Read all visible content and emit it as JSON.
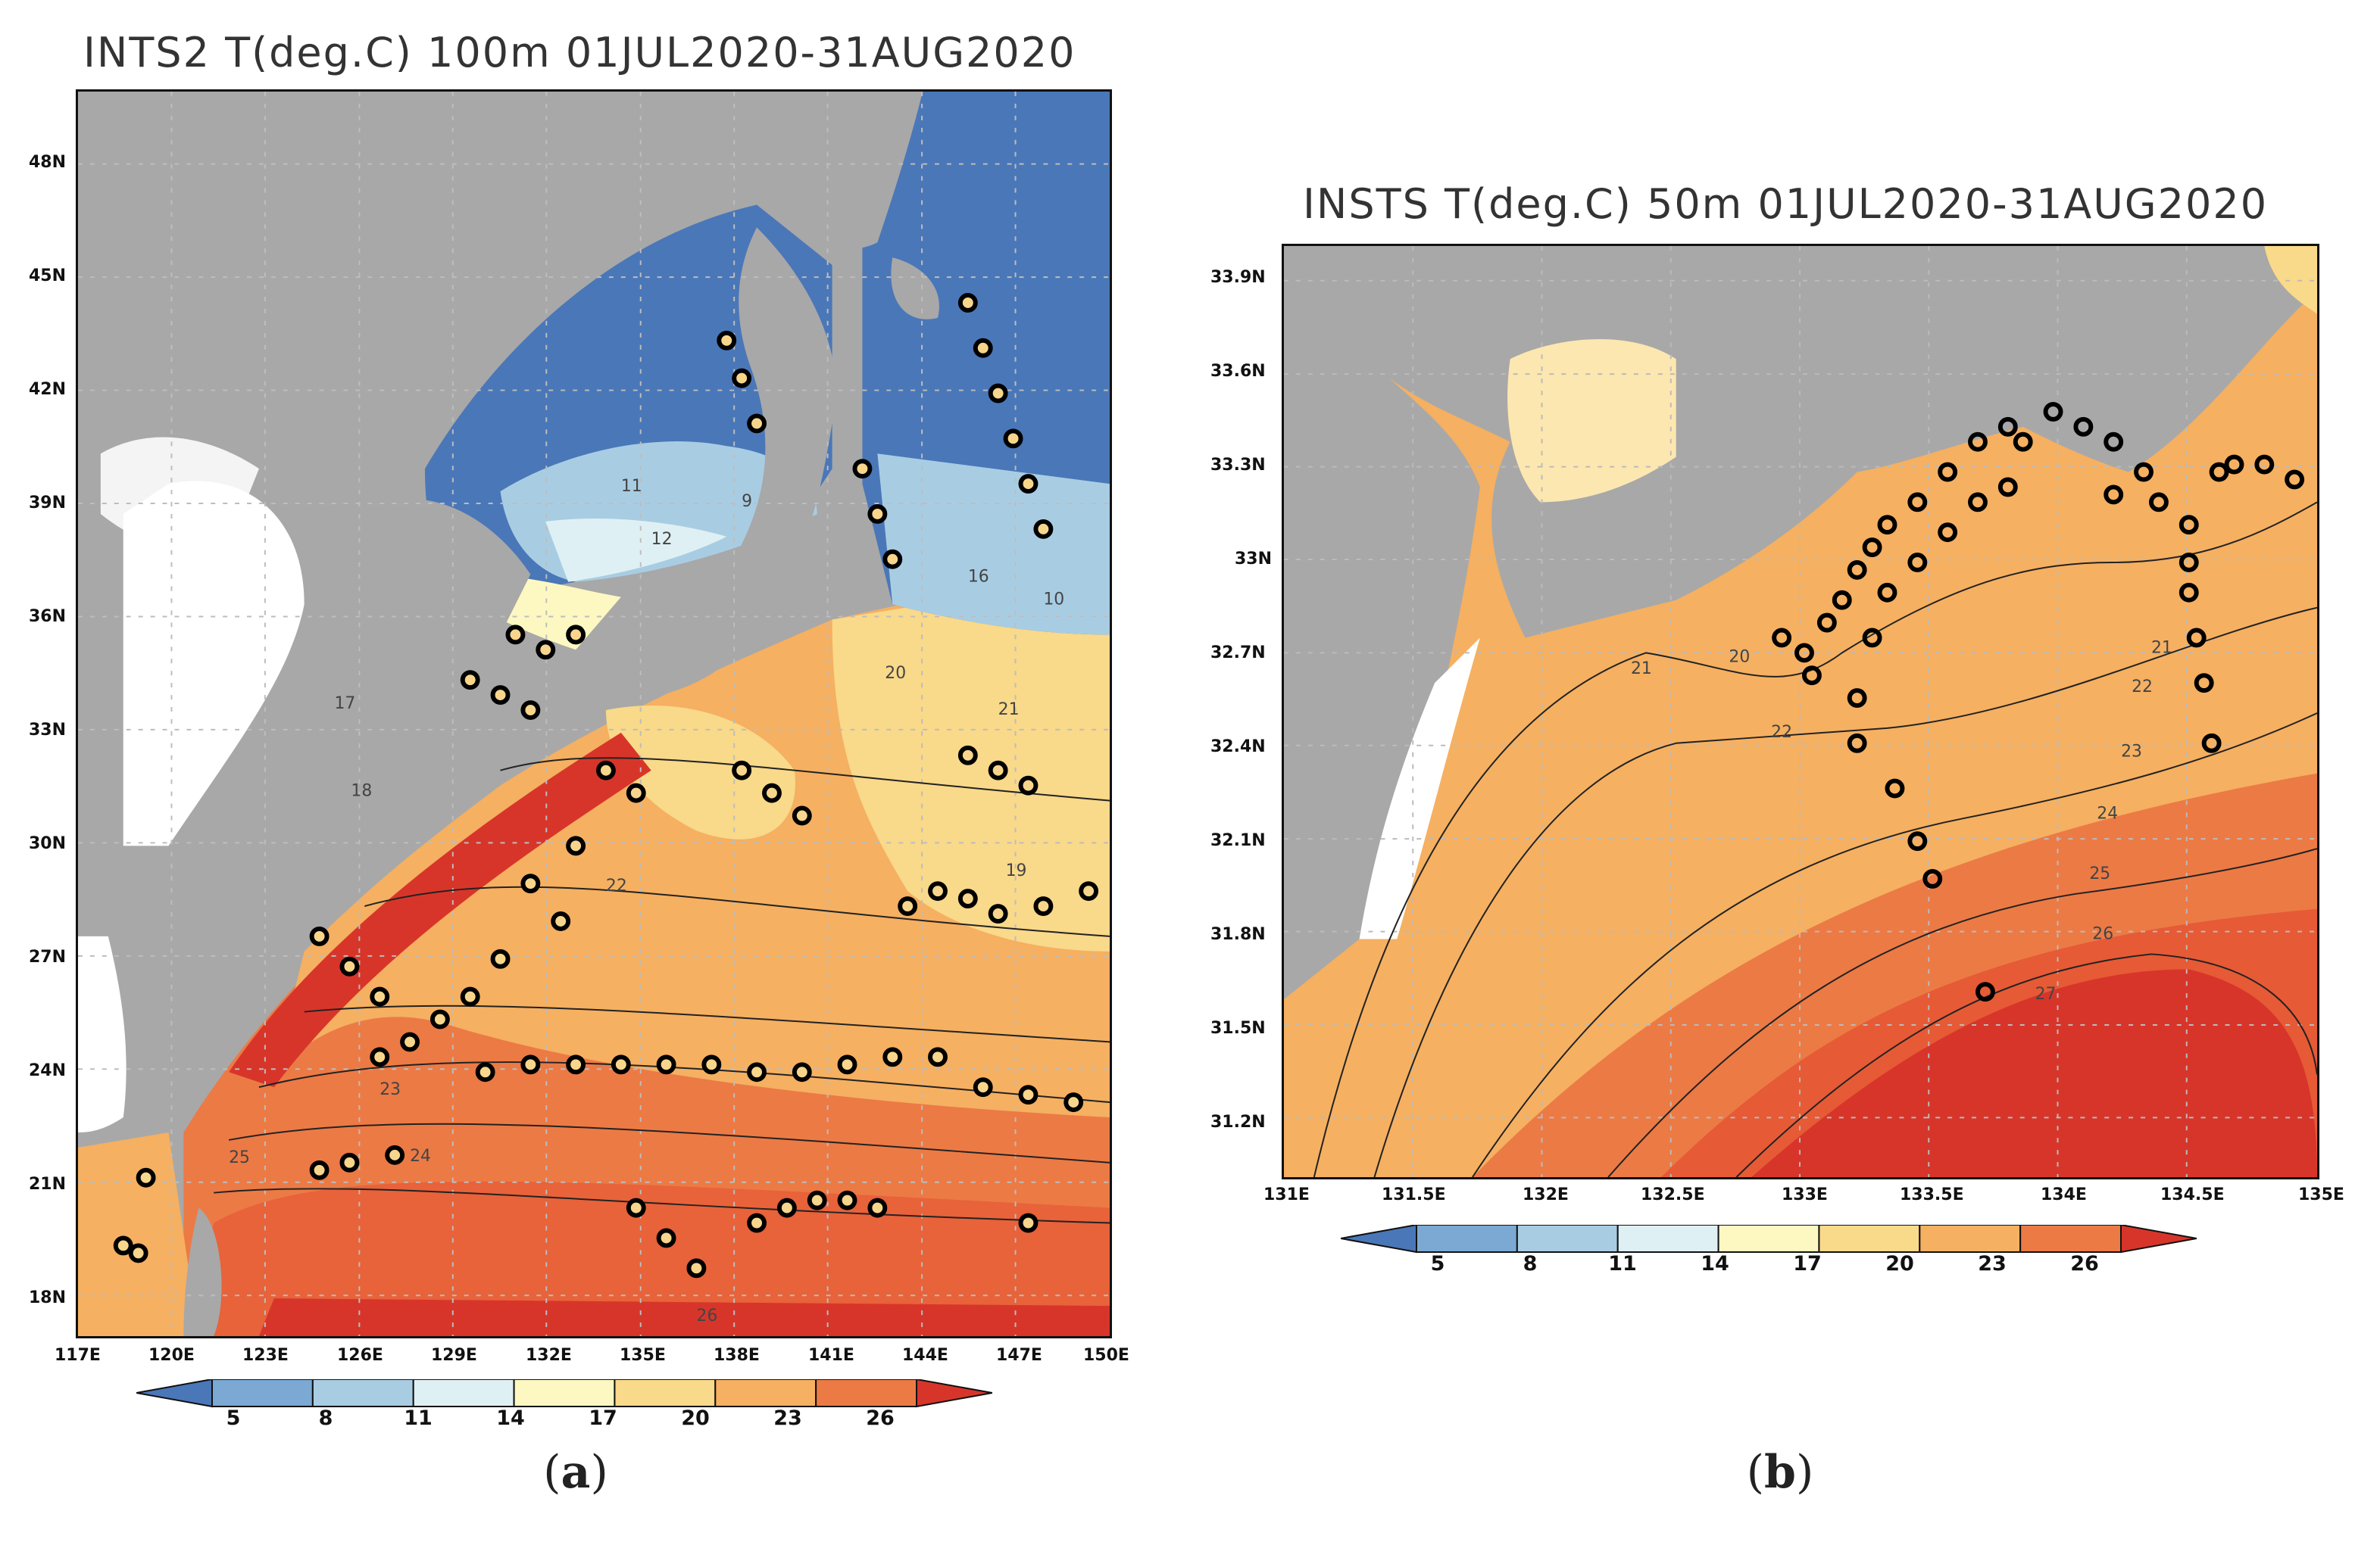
{
  "panels": [
    {
      "id": "a",
      "title": "INTS2 T(deg.C) 100m 01JUL2020-31AUG2020",
      "label_open": "(",
      "label_letter": "a",
      "label_close": ")",
      "x_ticks": [
        "117E",
        "120E",
        "123E",
        "126E",
        "129E",
        "132E",
        "135E",
        "138E",
        "141E",
        "144E",
        "147E",
        "150E"
      ],
      "y_ticks": [
        "48N",
        "45N",
        "42N",
        "39N",
        "36N",
        "33N",
        "30N",
        "27N",
        "24N",
        "21N",
        "18N"
      ],
      "contour_labels": [
        "17",
        "18",
        "20",
        "21",
        "22",
        "23",
        "24",
        "25",
        "26",
        "19",
        "9",
        "10",
        "11",
        "12",
        "16"
      ],
      "colorbar_ticks": [
        "5",
        "8",
        "11",
        "14",
        "17",
        "20",
        "23",
        "26"
      ]
    },
    {
      "id": "b",
      "title": "INSTS T(deg.C) 50m 01JUL2020-31AUG2020",
      "label_open": "(",
      "label_letter": "b",
      "label_close": ")",
      "x_ticks": [
        "131E",
        "131.5E",
        "132E",
        "132.5E",
        "133E",
        "133.5E",
        "134E",
        "134.5E",
        "135E"
      ],
      "y_ticks": [
        "33.9N",
        "33.6N",
        "33.3N",
        "33N",
        "32.7N",
        "32.4N",
        "32.1N",
        "31.8N",
        "31.5N",
        "31.2N"
      ],
      "contour_labels": [
        "20",
        "21",
        "22",
        "23",
        "24",
        "25",
        "26",
        "27"
      ],
      "colorbar_ticks": [
        "5",
        "8",
        "11",
        "14",
        "17",
        "20",
        "23",
        "26"
      ]
    }
  ],
  "colorbar_colors": [
    "#4a77b8",
    "#7ba9d3",
    "#a8cde3",
    "#dff0f4",
    "#fdf7c2",
    "#f9d98a",
    "#f5b061",
    "#ec7a45",
    "#d8352a"
  ],
  "colors": {
    "land": "#a8a8a8",
    "deep_blue": "#4a77b8",
    "warm_red": "#d8352a",
    "station_fill": "#f7d68c",
    "station_edge": "#000000"
  }
}
